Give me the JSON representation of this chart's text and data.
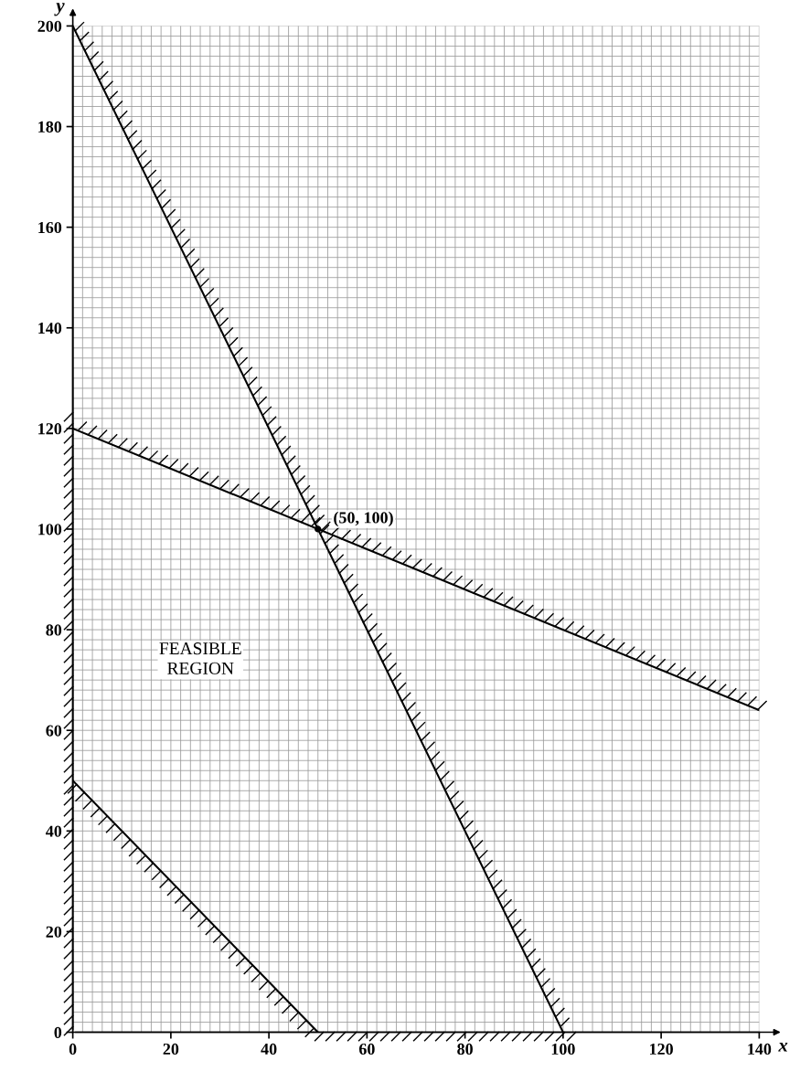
{
  "chart_data": {
    "type": "line",
    "xlabel": "x",
    "ylabel": "y",
    "xlim": [
      0,
      140
    ],
    "ylim": [
      0,
      200
    ],
    "xticks": [
      0,
      20,
      40,
      60,
      80,
      100,
      120,
      140
    ],
    "yticks": [
      0,
      20,
      40,
      60,
      80,
      100,
      120,
      140,
      160,
      180,
      200
    ],
    "grid": true,
    "series": [
      {
        "color": "#000000",
        "x": [
          0,
          100
        ],
        "values": [
          200,
          0
        ]
      },
      {
        "color": "#000000",
        "x": [
          0,
          140
        ],
        "values": [
          120,
          64
        ]
      },
      {
        "color": "#000000",
        "x": [
          0,
          50
        ],
        "values": [
          50,
          0
        ]
      },
      {
        "type": "scatter",
        "color": "#000000",
        "marker": "circle",
        "x": [
          50
        ],
        "values": [
          100
        ]
      }
    ],
    "annotations": [
      {
        "text": "(50, 100)",
        "x": 50,
        "y": 100
      },
      "FEASIBLE\nREGION"
    ]
  }
}
